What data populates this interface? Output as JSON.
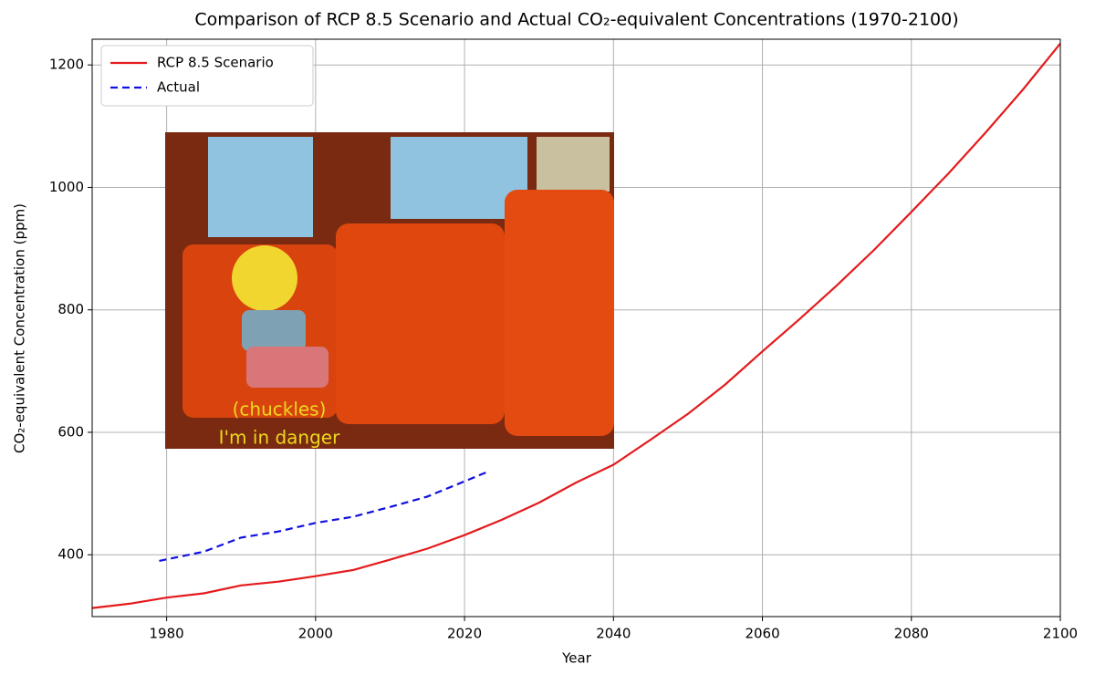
{
  "chart_data": {
    "type": "line",
    "title": "Comparison of RCP 8.5 Scenario and Actual CO₂-equivalent Concentrations (1970-2100)",
    "x_label": "Year",
    "y_label": "CO₂-equivalent Concentration (ppm)",
    "xlim": [
      1970,
      2100
    ],
    "xticks": [
      1980,
      2000,
      2020,
      2040,
      2060,
      2080,
      2100
    ],
    "ylim": [
      299,
      1242
    ],
    "yticks": [
      400,
      600,
      800,
      1000,
      1200
    ],
    "grid": true,
    "legend": "upper left",
    "series": [
      {
        "name": "RCP 8.5 Scenario",
        "color": "#e41a1c",
        "style": "solid",
        "x": [
          1970,
          1975,
          1980,
          1985,
          1990,
          1995,
          2000,
          2005,
          2010,
          2015,
          2020,
          2025,
          2030,
          2035,
          2040,
          2045,
          2050,
          2055,
          2060,
          2065,
          2070,
          2075,
          2080,
          2085,
          2090,
          2095,
          2100
        ],
        "values": [
          313,
          320,
          330,
          337,
          350,
          356,
          365,
          375,
          392,
          410,
          432,
          457,
          485,
          518,
          547,
          588,
          630,
          678,
          732,
          785,
          840,
          898,
          960,
          1023,
          1090,
          1160,
          1235
        ]
      },
      {
        "name": "Actual",
        "color": "#1010e0",
        "style": "dashed",
        "x": [
          1979,
          1985,
          1990,
          1995,
          2000,
          2005,
          2010,
          2015,
          2020,
          2023
        ],
        "values": [
          390,
          405,
          428,
          438,
          452,
          462,
          478,
          495,
          520,
          535
        ]
      }
    ],
    "annotations": [
      "(chuckles)",
      "I'm in danger"
    ]
  }
}
